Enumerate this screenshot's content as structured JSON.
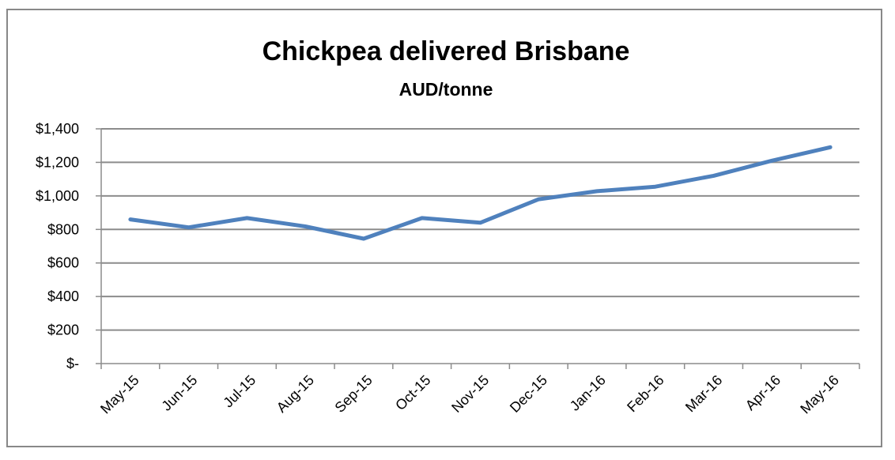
{
  "chart_data": {
    "type": "line",
    "title": "Chickpea delivered Brisbane",
    "subtitle": "AUD/tonne",
    "xlabel": "",
    "ylabel": "",
    "categories": [
      "May-15",
      "Jun-15",
      "Jul-15",
      "Aug-15",
      "Sep-15",
      "Oct-15",
      "Nov-15",
      "Dec-15",
      "Jan-16",
      "Feb-16",
      "Mar-16",
      "Apr-16",
      "May-16"
    ],
    "series": [
      {
        "values": [
          860,
          812,
          868,
          818,
          745,
          868,
          840,
          980,
          1028,
          1055,
          1120,
          1210,
          1290
        ]
      }
    ],
    "ylim": [
      0,
      1400
    ],
    "yticks": [
      0,
      200,
      400,
      600,
      800,
      1000,
      1200,
      1400
    ],
    "ytick_labels": [
      "$-",
      "$200",
      "$400",
      "$600",
      "$800",
      "$1,000",
      "$1,200",
      "$1,400"
    ],
    "grid": true,
    "legend": "none",
    "colors": {
      "series": "#4f81bd",
      "grid": "#8c8c8c",
      "border": "#888888"
    }
  }
}
